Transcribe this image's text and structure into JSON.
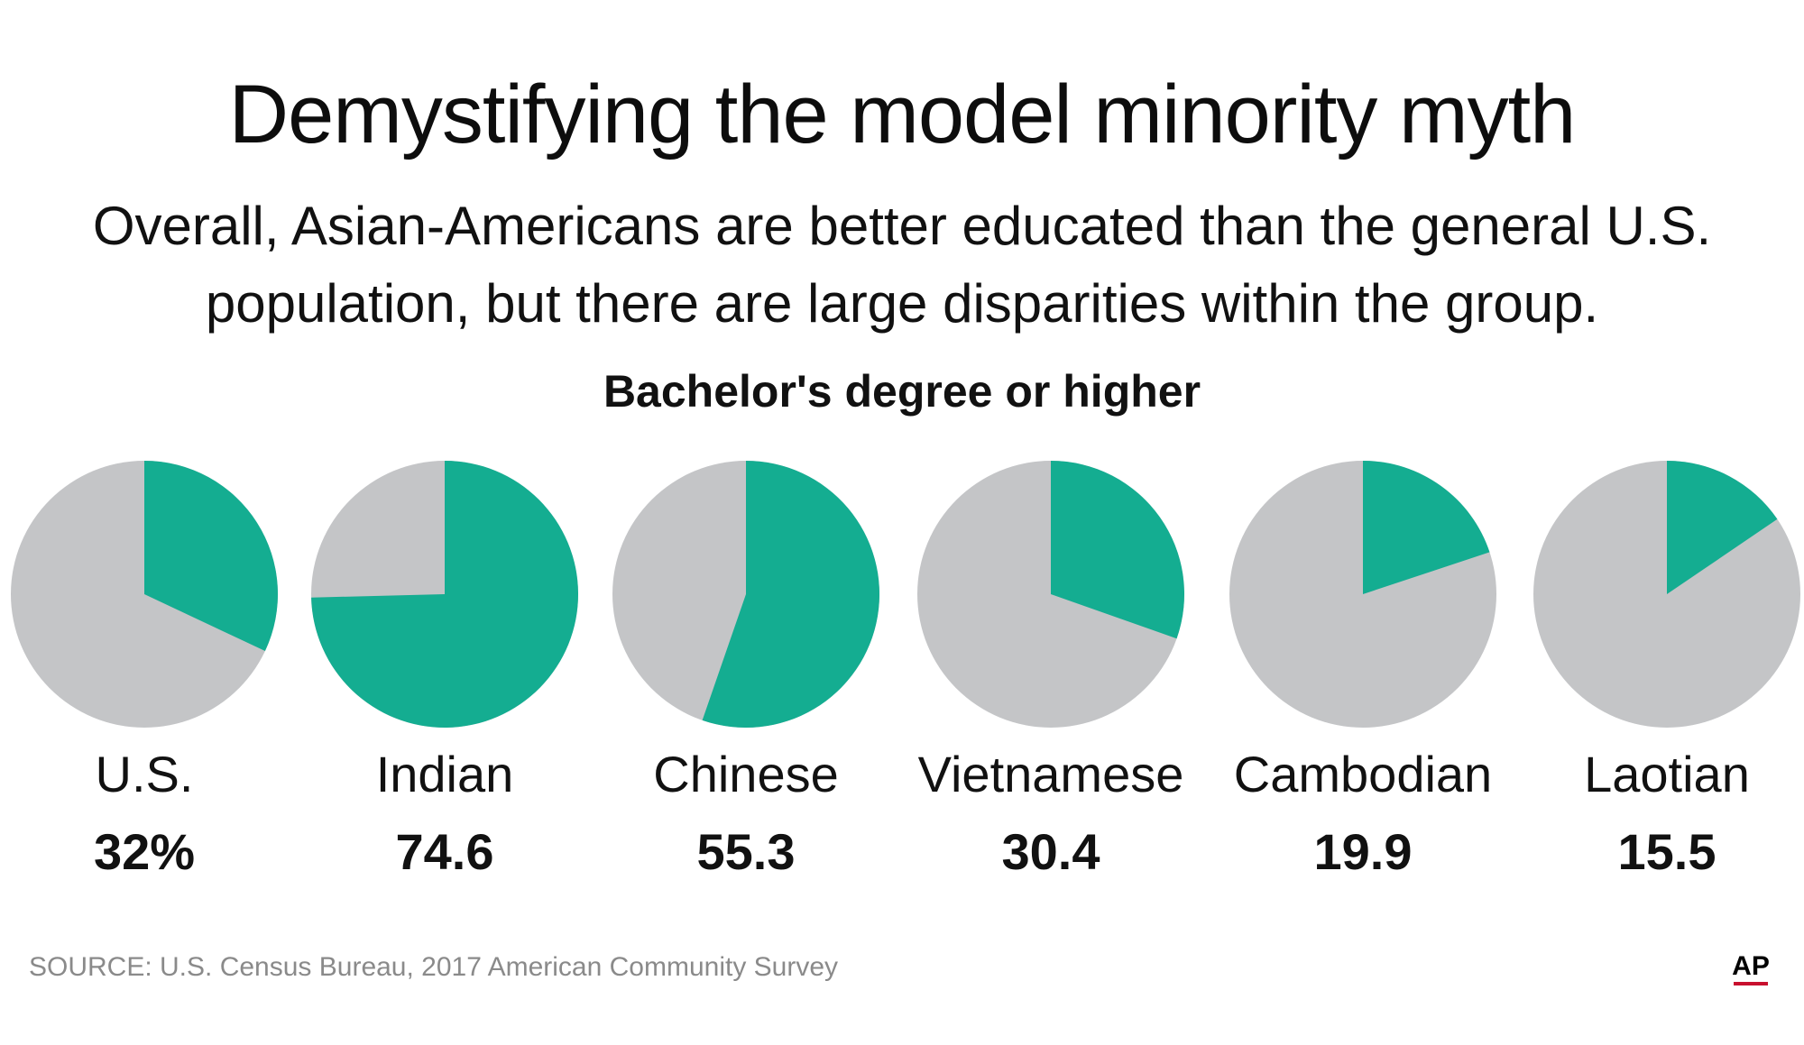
{
  "header": {
    "title": "Demystifying the model minority myth",
    "subtitle_line1": "Overall, Asian-Americans are better educated than the general U.S.",
    "subtitle_line2": "population, but there are large disparities within the group."
  },
  "chart_data": {
    "type": "pie",
    "title": "Bachelor's degree or higher",
    "unit": "percent",
    "categories": [
      "U.S.",
      "Indian",
      "Chinese",
      "Vietnamese",
      "Cambodian",
      "Laotian"
    ],
    "value_labels": [
      "32%",
      "74.6",
      "55.3",
      "30.4",
      "19.9",
      "15.5"
    ],
    "values": [
      32,
      74.6,
      55.3,
      30.4,
      19.9,
      15.5
    ],
    "colors": {
      "highlight": "#14ad91",
      "remainder": "#c4c5c7"
    }
  },
  "footer": {
    "source": "SOURCE: U.S. Census Bureau, 2017 American Community Survey",
    "logo_text": "AP"
  }
}
